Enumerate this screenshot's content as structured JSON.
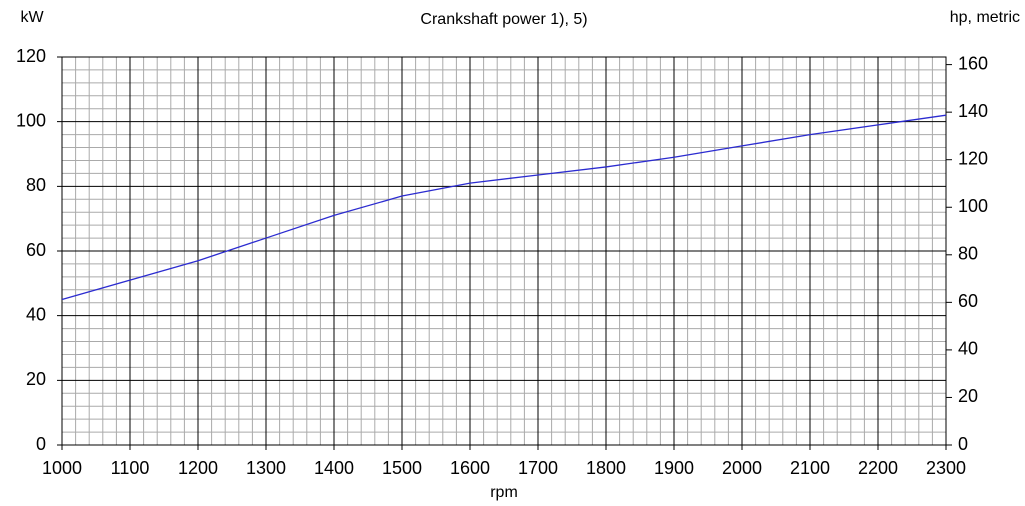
{
  "chart_data": {
    "type": "line",
    "title": "Crankshaft power 1), 5)",
    "ylabel": "kW",
    "y2label": "hp, metric",
    "xlabel": "rpm",
    "x": [
      1000,
      1100,
      1200,
      1300,
      1400,
      1500,
      1600,
      1700,
      1800,
      1900,
      2000,
      2100,
      2200,
      2300
    ],
    "series": [
      {
        "name": "Crankshaft power",
        "color": "#2b2bd0",
        "values": [
          45,
          51,
          57,
          64,
          71,
          77,
          81,
          83.5,
          86,
          89,
          92.5,
          96,
          99,
          102
        ]
      }
    ],
    "xlim": [
      1000,
      2300
    ],
    "xticks": [
      1000,
      1100,
      1200,
      1300,
      1400,
      1500,
      1600,
      1700,
      1800,
      1900,
      2000,
      2100,
      2200,
      2300
    ],
    "ylim": [
      0,
      120
    ],
    "yticks": [
      0,
      20,
      40,
      60,
      80,
      100,
      120
    ],
    "y2lim": [
      0,
      163.2
    ],
    "y2ticks": [
      0,
      20,
      40,
      60,
      80,
      100,
      120,
      140,
      160
    ],
    "xminorticks": [
      1020,
      1040,
      1060,
      1080,
      1120,
      1140,
      1160,
      1180,
      1220,
      1240,
      1260,
      1280,
      1320,
      1340,
      1360,
      1380,
      1420,
      1440,
      1460,
      1480,
      1520,
      1540,
      1560,
      1580,
      1620,
      1640,
      1660,
      1680,
      1720,
      1740,
      1760,
      1780,
      1820,
      1840,
      1860,
      1880,
      1920,
      1940,
      1960,
      1980,
      2020,
      2040,
      2060,
      2080,
      2120,
      2140,
      2160,
      2180,
      2220,
      2240,
      2260,
      2280
    ],
    "yminorticks": [
      4,
      8,
      12,
      16,
      24,
      28,
      32,
      36,
      44,
      48,
      52,
      56,
      64,
      68,
      72,
      76,
      84,
      88,
      92,
      96,
      104,
      108,
      112,
      116
    ],
    "grid": true
  }
}
